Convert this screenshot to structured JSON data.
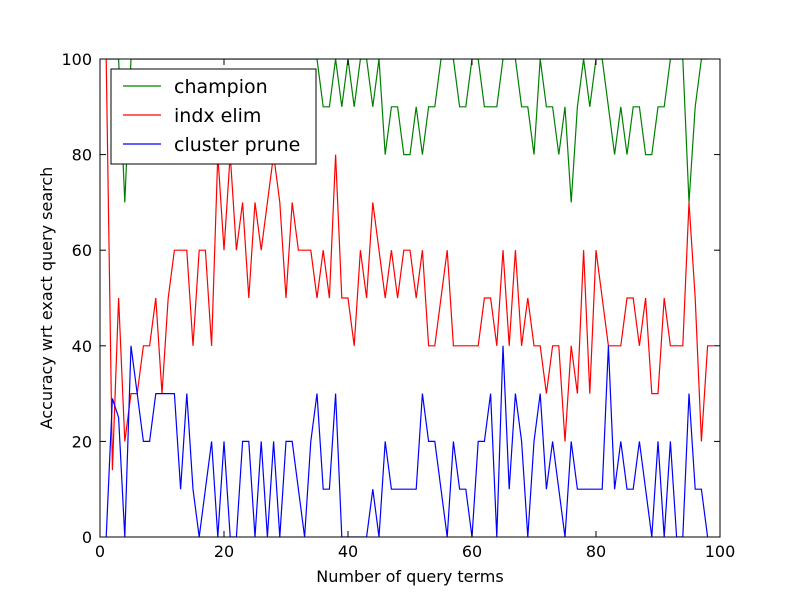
{
  "chart_data": {
    "type": "line",
    "xlabel": "Number of query terms",
    "ylabel": "Accuracy wrt exact query search",
    "xlim": [
      0,
      100
    ],
    "ylim": [
      0,
      100
    ],
    "xticks": [
      "0",
      "20",
      "40",
      "60",
      "80",
      "100"
    ],
    "yticks": [
      "0",
      "20",
      "40",
      "60",
      "80",
      "100"
    ],
    "grid": false,
    "legend_position": "top-left",
    "series": [
      {
        "name": "champion",
        "color": "#008000",
        "x": [
          1,
          2,
          3,
          4,
          5,
          6,
          7,
          8,
          9,
          10,
          11,
          12,
          13,
          14,
          15,
          16,
          17,
          18,
          19,
          20,
          21,
          22,
          23,
          24,
          25,
          26,
          27,
          28,
          29,
          30,
          31,
          32,
          33,
          34,
          35,
          36,
          37,
          38,
          39,
          40,
          41,
          42,
          43,
          44,
          45,
          46,
          47,
          48,
          49,
          50,
          51,
          52,
          53,
          54,
          55,
          56,
          57,
          58,
          59,
          60,
          61,
          62,
          63,
          64,
          65,
          66,
          67,
          68,
          69,
          70,
          71,
          72,
          73,
          74,
          75,
          76,
          77,
          78,
          79,
          80,
          81,
          82,
          83,
          84,
          85,
          86,
          87,
          88,
          89,
          90,
          91,
          92,
          93,
          94,
          95,
          96,
          97,
          98
        ],
        "values": [
          100,
          100,
          100,
          70,
          100,
          100,
          100,
          100,
          100,
          100,
          100,
          100,
          100,
          100,
          100,
          100,
          100,
          100,
          100,
          100,
          100,
          100,
          100,
          100,
          100,
          100,
          100,
          100,
          100,
          100,
          100,
          100,
          100,
          100,
          100,
          90,
          90,
          100,
          90,
          100,
          90,
          100,
          100,
          90,
          100,
          80,
          90,
          90,
          80,
          80,
          90,
          80,
          90,
          90,
          100,
          100,
          100,
          90,
          90,
          100,
          100,
          90,
          90,
          90,
          100,
          100,
          100,
          90,
          90,
          80,
          100,
          90,
          90,
          80,
          90,
          70,
          90,
          100,
          90,
          100,
          100,
          90,
          80,
          90,
          80,
          90,
          90,
          80,
          80,
          90,
          90,
          100,
          100,
          100,
          70,
          90,
          100,
          100
        ]
      },
      {
        "name": "indx elim",
        "color": "#ff0000",
        "x": [
          1,
          2,
          3,
          4,
          5,
          6,
          7,
          8,
          9,
          10,
          11,
          12,
          13,
          14,
          15,
          16,
          17,
          18,
          19,
          20,
          21,
          22,
          23,
          24,
          25,
          26,
          27,
          28,
          29,
          30,
          31,
          32,
          33,
          34,
          35,
          36,
          37,
          38,
          39,
          40,
          41,
          42,
          43,
          44,
          45,
          46,
          47,
          48,
          49,
          50,
          51,
          52,
          53,
          54,
          55,
          56,
          57,
          58,
          59,
          60,
          61,
          62,
          63,
          64,
          65,
          66,
          67,
          68,
          69,
          70,
          71,
          72,
          73,
          74,
          75,
          76,
          77,
          78,
          79,
          80,
          81,
          82,
          83,
          84,
          85,
          86,
          87,
          88,
          89,
          90,
          91,
          92,
          93,
          94,
          95,
          96,
          97,
          98,
          99
        ],
        "values": [
          100,
          14,
          50,
          20,
          30,
          30,
          40,
          40,
          50,
          30,
          50,
          60,
          60,
          60,
          40,
          60,
          60,
          40,
          80,
          60,
          80,
          60,
          70,
          50,
          70,
          60,
          70,
          80,
          70,
          50,
          70,
          60,
          60,
          60,
          50,
          60,
          50,
          80,
          50,
          50,
          40,
          60,
          50,
          70,
          60,
          50,
          60,
          50,
          60,
          60,
          50,
          60,
          40,
          40,
          50,
          60,
          40,
          40,
          40,
          40,
          40,
          50,
          50,
          40,
          60,
          40,
          60,
          40,
          50,
          40,
          40,
          30,
          40,
          40,
          20,
          40,
          30,
          60,
          30,
          60,
          50,
          40,
          40,
          40,
          50,
          50,
          40,
          50,
          30,
          30,
          50,
          40,
          40,
          40,
          70,
          50,
          20,
          40,
          40
        ]
      },
      {
        "name": "cluster prune",
        "color": "#0000ff",
        "x": [
          1,
          2,
          3,
          4,
          5,
          6,
          7,
          8,
          9,
          10,
          11,
          12,
          13,
          14,
          15,
          16,
          17,
          18,
          19,
          20,
          21,
          22,
          23,
          24,
          25,
          26,
          27,
          28,
          29,
          30,
          31,
          32,
          33,
          34,
          35,
          36,
          37,
          38,
          39,
          40,
          41,
          42,
          43,
          44,
          45,
          46,
          47,
          48,
          49,
          50,
          51,
          52,
          53,
          54,
          55,
          56,
          57,
          58,
          59,
          60,
          61,
          62,
          63,
          64,
          65,
          66,
          67,
          68,
          69,
          70,
          71,
          72,
          73,
          74,
          75,
          76,
          77,
          78,
          79,
          80,
          81,
          82,
          83,
          84,
          85,
          86,
          87,
          88,
          89,
          90,
          91,
          92,
          93,
          94,
          95,
          96,
          97,
          98
        ],
        "values": [
          0,
          29,
          25,
          0,
          40,
          30,
          20,
          20,
          30,
          30,
          30,
          30,
          10,
          30,
          10,
          0,
          10,
          20,
          0,
          20,
          0,
          0,
          20,
          20,
          0,
          20,
          0,
          20,
          0,
          20,
          20,
          10,
          0,
          20,
          30,
          10,
          10,
          30,
          0,
          0,
          0,
          0,
          0,
          10,
          0,
          20,
          10,
          10,
          10,
          10,
          10,
          30,
          20,
          20,
          10,
          0,
          20,
          10,
          10,
          0,
          20,
          20,
          30,
          0,
          40,
          10,
          30,
          20,
          0,
          20,
          30,
          10,
          20,
          10,
          0,
          20,
          10,
          10,
          10,
          10,
          10,
          40,
          10,
          20,
          10,
          10,
          20,
          10,
          0,
          20,
          0,
          20,
          0,
          0,
          30,
          10,
          10,
          0
        ]
      }
    ]
  }
}
